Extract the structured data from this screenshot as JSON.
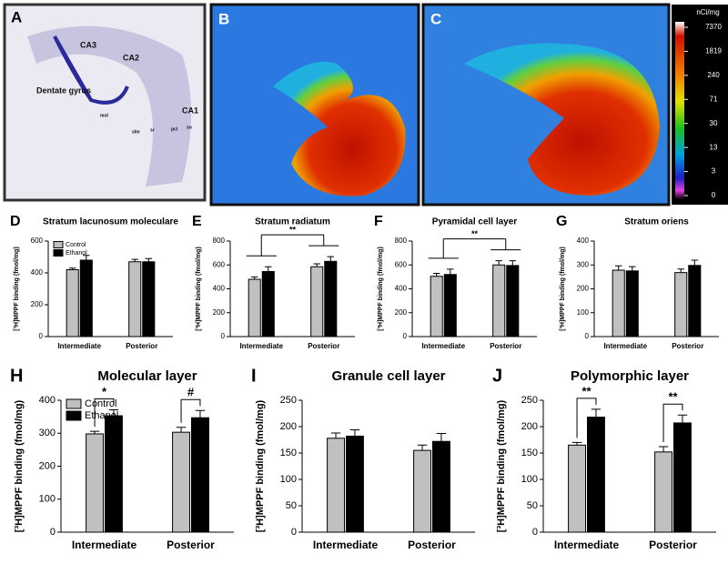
{
  "images": {
    "panels": [
      "A",
      "B",
      "C"
    ],
    "labels_A": [
      "CA3",
      "CA2",
      "Dentate gyrus",
      "CA1",
      "mol",
      "slm",
      "sr",
      "pcl",
      "so"
    ]
  },
  "colorbar": {
    "title": "nCi/mg",
    "labels": [
      7370,
      1819,
      240,
      71,
      30,
      13,
      3,
      0
    ]
  },
  "chart_data": [
    {
      "type": "bar",
      "panel": "D",
      "title": "Stratum lacunosum moleculare",
      "y_label": "[³H]MPPF binding (fmol/mg)",
      "categories": [
        "Intermediate",
        "Posterior"
      ],
      "ylim": [
        0,
        600
      ],
      "yticks": [
        0,
        200,
        400,
        600
      ],
      "legend": true,
      "series": [
        {
          "name": "Control",
          "color": "#c0c0c0",
          "values": [
            420,
            470
          ],
          "errors": [
            10,
            15
          ]
        },
        {
          "name": "Ethanol",
          "color": "#000000",
          "values": [
            480,
            470
          ],
          "errors": [
            30,
            20
          ]
        }
      ]
    },
    {
      "type": "bar",
      "panel": "E",
      "title": "Stratum radiatum",
      "y_label": "[³H]MPPF binding (fmol/mg)",
      "categories": [
        "Intermediate",
        "Posterior"
      ],
      "ylim": [
        0,
        800
      ],
      "yticks": [
        0,
        200,
        400,
        600,
        800
      ],
      "comparison": "between",
      "annotations": [
        "**"
      ],
      "series": [
        {
          "name": "Control",
          "color": "#c0c0c0",
          "values": [
            480,
            585
          ],
          "errors": [
            20,
            25
          ]
        },
        {
          "name": "Ethanol",
          "color": "#000000",
          "values": [
            545,
            630
          ],
          "errors": [
            40,
            40
          ]
        }
      ]
    },
    {
      "type": "bar",
      "panel": "F",
      "title": "Pyramidal cell layer",
      "y_label": "[³H]MPPF binding (fmol/mg)",
      "categories": [
        "Intermediate",
        "Posterior"
      ],
      "ylim": [
        0,
        800
      ],
      "yticks": [
        0,
        200,
        400,
        600,
        800
      ],
      "comparison": "between",
      "annotations": [
        "**"
      ],
      "series": [
        {
          "name": "Control",
          "color": "#c0c0c0",
          "values": [
            505,
            600
          ],
          "errors": [
            25,
            35
          ]
        },
        {
          "name": "Ethanol",
          "color": "#000000",
          "values": [
            520,
            595
          ],
          "errors": [
            45,
            40
          ]
        }
      ]
    },
    {
      "type": "bar",
      "panel": "G",
      "title": "Stratum oriens",
      "y_label": "[³H]MPPF binding (fmol/mg)",
      "categories": [
        "Intermediate",
        "Posterior"
      ],
      "ylim": [
        0,
        400
      ],
      "yticks": [
        0,
        100,
        200,
        300,
        400
      ],
      "series": [
        {
          "name": "Control",
          "color": "#c0c0c0",
          "values": [
            278,
            268
          ],
          "errors": [
            18,
            15
          ]
        },
        {
          "name": "Ethanol",
          "color": "#000000",
          "values": [
            275,
            298
          ],
          "errors": [
            18,
            22
          ]
        }
      ]
    },
    {
      "type": "bar",
      "panel": "H",
      "title": "Molecular layer",
      "y_label": "[³H]MPPF binding (fmol/mg)",
      "categories": [
        "Intermediate",
        "Posterior"
      ],
      "ylim": [
        0,
        400
      ],
      "yticks": [
        0,
        100,
        200,
        300,
        400
      ],
      "legend": true,
      "comparison": "within",
      "annotations": [
        "*",
        "#"
      ],
      "series": [
        {
          "name": "Control",
          "color": "#c0c0c0",
          "values": [
            298,
            303
          ],
          "errors": [
            8,
            15
          ]
        },
        {
          "name": "Ethanol",
          "color": "#000000",
          "values": [
            353,
            347
          ],
          "errors": [
            18,
            22
          ]
        }
      ]
    },
    {
      "type": "bar",
      "panel": "I",
      "title": "Granule cell layer",
      "y_label": "[³H]MPPF binding (fmol/mg)",
      "categories": [
        "Intermediate",
        "Posterior"
      ],
      "ylim": [
        0,
        250
      ],
      "yticks": [
        0,
        50,
        100,
        150,
        200,
        250
      ],
      "series": [
        {
          "name": "Control",
          "color": "#c0c0c0",
          "values": [
            178,
            155
          ],
          "errors": [
            10,
            10
          ]
        },
        {
          "name": "Ethanol",
          "color": "#000000",
          "values": [
            182,
            172
          ],
          "errors": [
            12,
            15
          ]
        }
      ]
    },
    {
      "type": "bar",
      "panel": "J",
      "title": "Polymorphic layer",
      "y_label": "[³H]MPPF binding (fmol/mg)",
      "categories": [
        "Intermediate",
        "Posterior"
      ],
      "ylim": [
        0,
        250
      ],
      "yticks": [
        0,
        50,
        100,
        150,
        200,
        250
      ],
      "comparison": "within",
      "annotations": [
        "**",
        "**"
      ],
      "series": [
        {
          "name": "Control",
          "color": "#c0c0c0",
          "values": [
            165,
            152
          ],
          "errors": [
            5,
            10
          ]
        },
        {
          "name": "Ethanol",
          "color": "#000000",
          "values": [
            218,
            207
          ],
          "errors": [
            15,
            15
          ]
        }
      ]
    }
  ]
}
